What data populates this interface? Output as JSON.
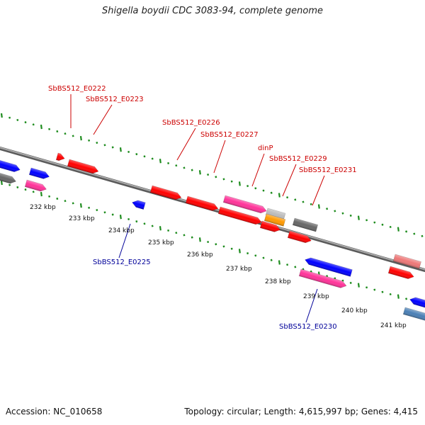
{
  "title": "Shigella boydii CDC 3083-94, complete genome",
  "footer": {
    "accession": "Accession: NC_010658",
    "summary": "Topology: circular; Length: 4,615,997 bp; Genes: 4,415"
  },
  "colors": {
    "background": "#ffffff",
    "backbone": "#8c8c8c",
    "tick_marks": "#1e8c1e",
    "label_red": "#cc0000",
    "label_blue": "#000099",
    "gene_red": "#ff0000",
    "gene_blue": "#0000ff",
    "gene_magenta": "#ff3399",
    "gene_gray": "#666666",
    "gene_orange": "#ff9900",
    "gene_lightgray": "#bbbbbb",
    "gene_pink": "#ee7777",
    "gene_steelblue": "#4a7fb5"
  },
  "kbp_labels": [
    "232 kbp",
    "233 kbp",
    "234 kbp",
    "235 kbp",
    "236 kbp",
    "237 kbp",
    "238 kbp",
    "239 kbp",
    "240 kbp",
    "241 kbp"
  ],
  "gene_labels": [
    {
      "id": "SbBS512_E0222",
      "strand": "top"
    },
    {
      "id": "SbBS512_E0223",
      "strand": "top"
    },
    {
      "id": "SbBS512_E0226",
      "strand": "top"
    },
    {
      "id": "SbBS512_E0227",
      "strand": "top"
    },
    {
      "id": "dinP",
      "strand": "top"
    },
    {
      "id": "SbBS512_E0229",
      "strand": "top"
    },
    {
      "id": "SbBS512_E0231",
      "strand": "top"
    },
    {
      "id": "SbBS512_E0225",
      "strand": "bottom"
    },
    {
      "id": "SbBS512_E0230",
      "strand": "bottom"
    }
  ]
}
